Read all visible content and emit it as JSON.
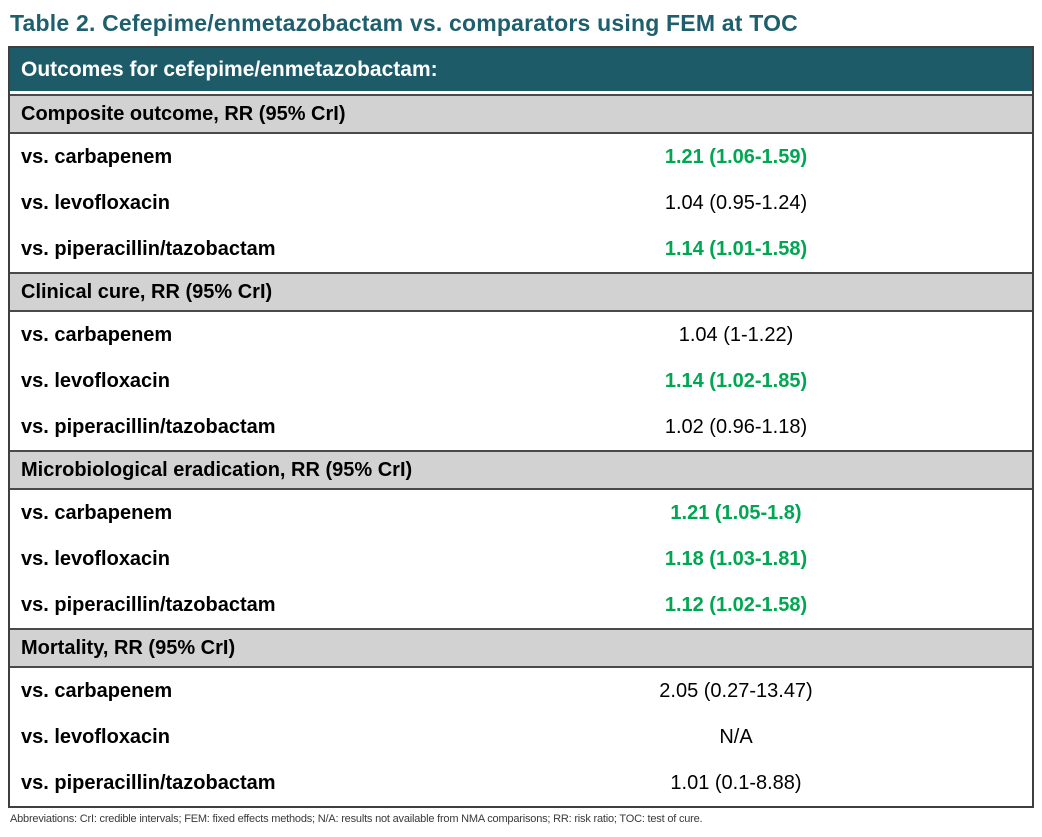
{
  "title": "Table 2. Cefepime/enmetazobactam vs. comparators using FEM at TOC",
  "table": {
    "header": "Outcomes for cefepime/enmetazobactam:",
    "sections": [
      {
        "label": "Composite outcome, RR (95% CrI)",
        "rows": [
          {
            "comparator": "vs. carbapenem",
            "value": "1.21 (1.06-1.59)",
            "significant": true
          },
          {
            "comparator": "vs. levofloxacin",
            "value": "1.04 (0.95-1.24)",
            "significant": false
          },
          {
            "comparator": "vs. piperacillin/tazobactam",
            "value": "1.14 (1.01-1.58)",
            "significant": true
          }
        ]
      },
      {
        "label": "Clinical cure, RR (95% CrI)",
        "rows": [
          {
            "comparator": "vs. carbapenem",
            "value": "1.04 (1-1.22)",
            "significant": false
          },
          {
            "comparator": "vs. levofloxacin",
            "value": "1.14 (1.02-1.85)",
            "significant": true
          },
          {
            "comparator": "vs. piperacillin/tazobactam",
            "value": "1.02 (0.96-1.18)",
            "significant": false
          }
        ]
      },
      {
        "label": "Microbiological eradication, RR (95% CrI)",
        "rows": [
          {
            "comparator": "vs. carbapenem",
            "value": "1.21 (1.05-1.8)",
            "significant": true
          },
          {
            "comparator": "vs. levofloxacin",
            "value": "1.18 (1.03-1.81)",
            "significant": true
          },
          {
            "comparator": "vs. piperacillin/tazobactam",
            "value": "1.12 (1.02-1.58)",
            "significant": true
          }
        ]
      },
      {
        "label": "Mortality, RR (95% CrI)",
        "rows": [
          {
            "comparator": "vs. carbapenem",
            "value": "2.05 (0.27-13.47)",
            "significant": false
          },
          {
            "comparator": "vs. levofloxacin",
            "value": "N/A",
            "significant": false
          },
          {
            "comparator": "vs. piperacillin/tazobactam",
            "value": "1.01 (0.1-8.88)",
            "significant": false
          }
        ]
      }
    ]
  },
  "footnote": "Abbreviations: CrI: credible intervals; FEM: fixed effects methods; N/A: results not available from NMA comparisons; RR: risk ratio; TOC: test of cure.",
  "colors": {
    "title_teal": "#1E5F6D",
    "header_bg": "#1D5B68",
    "section_bg": "#D2D2D2",
    "significant_green": "#00A651",
    "border_dark": "#3F3F3F"
  }
}
